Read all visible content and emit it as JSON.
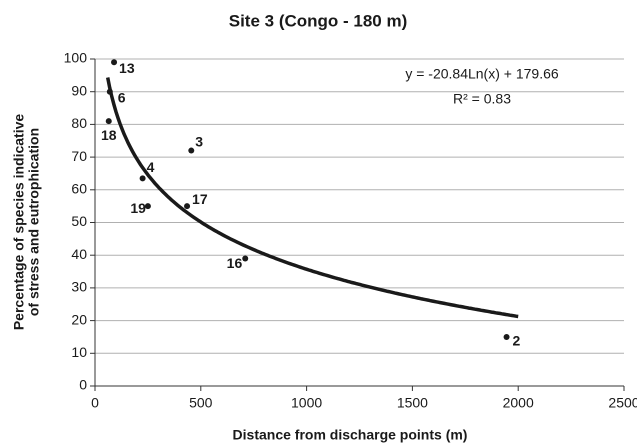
{
  "chart_data": {
    "type": "scatter",
    "title": "Site 3 (Congo - 180 m)",
    "xlabel": "Distance from discharge points (m)",
    "ylabel": [
      "Percentage of species indicative",
      "of stress and eutrophication"
    ],
    "x": [
      90,
      70,
      65,
      455,
      225,
      250,
      435,
      710,
      1945
    ],
    "values": [
      99,
      90,
      81,
      72,
      63.5,
      55,
      55,
      39,
      15
    ],
    "point_labels": [
      "13",
      "6",
      "18",
      "3",
      "4",
      "19",
      "17",
      "16",
      "2"
    ],
    "color": "#1a1a1a",
    "trendline": {
      "a": -20.84,
      "b": 179.66,
      "x_range": [
        60,
        2000
      ],
      "equation": "y = -20.84Ln(x) + 179.66",
      "r2": "R² = 0.83"
    },
    "xlim": [
      0,
      2500
    ],
    "xticks": [
      0,
      500,
      1000,
      1500,
      2000,
      2500
    ],
    "ylim": [
      0,
      100
    ],
    "yticks": [
      0,
      10,
      20,
      30,
      40,
      50,
      60,
      70,
      80,
      90,
      100
    ],
    "grid": true
  }
}
